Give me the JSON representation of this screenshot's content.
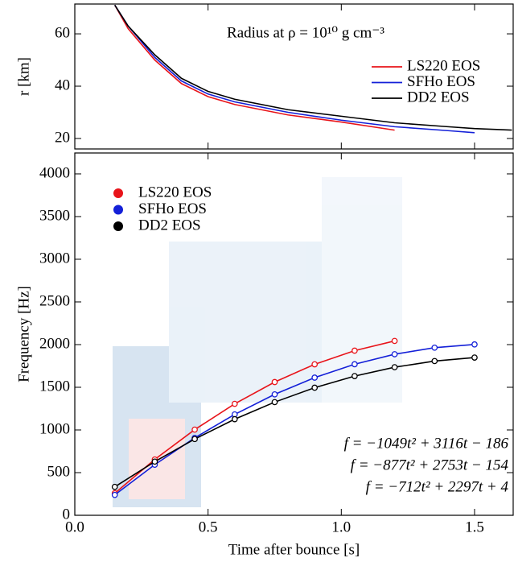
{
  "chart_data": [
    {
      "type": "line",
      "title": "Radius at ρ = 10¹⁰ g cm⁻³",
      "ylabel": "r [km]",
      "xlim": [
        0,
        1.645
      ],
      "ylim": [
        16,
        71.4
      ],
      "xticks": [
        {
          "value": 0,
          "label": "0.0"
        },
        0.5,
        {
          "value": 1,
          "label": "1.0"
        },
        1.5
      ],
      "yticks": [
        20,
        40,
        60
      ],
      "legend_style": "line",
      "markers": false,
      "x": [
        0.15,
        0.2,
        0.3,
        0.4,
        0.5,
        0.6,
        0.8,
        1.0,
        1.2,
        1.4,
        1.5,
        1.64
      ],
      "series": [
        {
          "name": "LS220 EOS",
          "color": "#e8141a",
          "values": [
            71,
            62,
            50,
            41,
            36,
            33,
            29,
            26.3,
            23.2,
            null,
            null,
            null
          ]
        },
        {
          "name": "SFHo EOS",
          "color": "#1420d8",
          "values": [
            71,
            63,
            51,
            42,
            37,
            34,
            30,
            27,
            24.5,
            23,
            22.2,
            null
          ]
        },
        {
          "name": "DD2 EOS",
          "color": "#000000",
          "values": [
            71,
            63,
            52,
            43,
            38,
            35,
            31,
            28.5,
            26,
            24.5,
            23.8,
            23.2
          ]
        }
      ]
    },
    {
      "type": "line",
      "xlabel": "Time after bounce [s]",
      "ylabel": "Frequency [Hz]",
      "xlim": [
        0,
        1.645
      ],
      "ylim": [
        0,
        4245
      ],
      "xticks": [
        {
          "value": 0,
          "label": "0.0"
        },
        0.5,
        {
          "value": 1,
          "label": "1.0"
        },
        1.5
      ],
      "yticks": [
        0,
        500,
        1000,
        1500,
        2000,
        2500,
        3000,
        3500,
        4000
      ],
      "legend_style": "marker",
      "markers": true,
      "x": [
        0.15,
        0.3,
        0.45,
        0.6,
        0.75,
        0.9,
        1.05,
        1.2,
        1.35,
        1.5
      ],
      "series": [
        {
          "name": "LS220 EOS",
          "color": "#e8141a",
          "values": [
            258,
            654,
            1004,
            1306,
            1561,
            1769,
            1929,
            2043,
            null,
            null
          ]
        },
        {
          "name": "SFHo EOS",
          "color": "#1420d8",
          "values": [
            239,
            593,
            907,
            1182,
            1417,
            1613,
            1770,
            1887,
            1964,
            2002
          ]
        },
        {
          "name": "DD2 EOS",
          "color": "#000000",
          "values": [
            333,
            629,
            893,
            1126,
            1326,
            1495,
            1631,
            1735,
            1807,
            1848
          ]
        }
      ],
      "annotations": [
        "f = −1049t² + 3116t − 186",
        "f = −877t² + 2753t − 154",
        "f = −712t² + 2297t + 4"
      ]
    }
  ]
}
